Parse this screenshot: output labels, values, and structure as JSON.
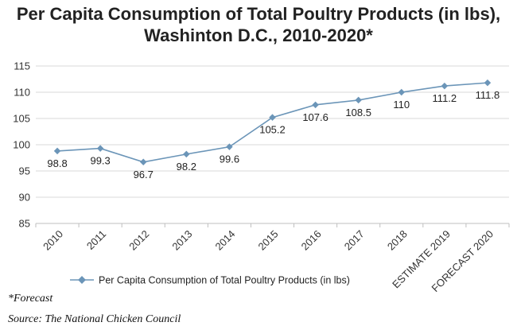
{
  "chart_data": {
    "type": "line",
    "title": [
      "Per Capita Consumption of Total Poultry Products (in lbs),",
      "Washinton D.C., 2010-2020*"
    ],
    "categories": [
      "2010",
      "2011",
      "2012",
      "2013",
      "2014",
      "2015",
      "2016",
      "2017",
      "2018",
      "ESTIMATE 2019",
      "FORECAST 2020"
    ],
    "series": [
      {
        "name": "Per Capita Consumption of Total Poultry Products (in lbs)",
        "values": [
          98.8,
          99.3,
          96.7,
          98.2,
          99.6,
          105.2,
          107.6,
          108.5,
          110,
          111.2,
          111.8
        ],
        "labels": [
          "98.8",
          "99.3",
          "96.7",
          "98.2",
          "99.6",
          "105.2",
          "107.6",
          "108.5",
          "110",
          "111.2",
          "111.8"
        ]
      }
    ],
    "ylim": [
      85,
      115
    ],
    "yticks": [
      85,
      90,
      95,
      100,
      105,
      110,
      115
    ],
    "grid": true,
    "legend_position": "bottom",
    "color": "#6b95b8"
  },
  "footnote": "*Forecast",
  "source": "Source: The National Chicken Council"
}
